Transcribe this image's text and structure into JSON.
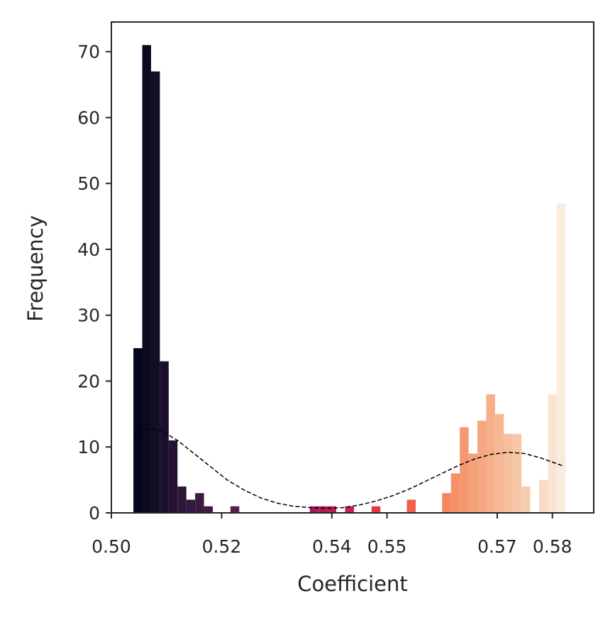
{
  "chart_data": {
    "type": "bar",
    "title": "",
    "xlabel": "Coefficient",
    "ylabel": "Frequency",
    "xlim": [
      0.5,
      0.5875
    ],
    "ylim": [
      0,
      74.5
    ],
    "x_ticks": [
      0.5,
      0.52,
      0.54,
      0.55,
      0.57,
      0.58
    ],
    "x_tick_labels": [
      "0.50",
      "0.52",
      "0.54",
      "0.55",
      "0.57",
      "0.58"
    ],
    "y_ticks": [
      0,
      10,
      20,
      30,
      40,
      50,
      60,
      70
    ],
    "y_tick_labels": [
      "0",
      "10",
      "20",
      "30",
      "40",
      "50",
      "60",
      "70"
    ],
    "bin_width": 0.0016,
    "bin_start": 0.504,
    "values": [
      25,
      71,
      67,
      23,
      11,
      4,
      2,
      3,
      1,
      0,
      0,
      1,
      0,
      0,
      0,
      0,
      0,
      0,
      0,
      0,
      1,
      1,
      1,
      0,
      1,
      0,
      0,
      1,
      0,
      0,
      0,
      2,
      0,
      0,
      0,
      3,
      6,
      13,
      9,
      14,
      18,
      15,
      12,
      12,
      4,
      0,
      5,
      18,
      47
    ],
    "colormap": [
      "#03051a",
      "#2a1736",
      "#4c1d4b",
      "#701f57",
      "#a11a5b",
      "#cb1b4f",
      "#ed4a3f",
      "#f47a54",
      "#f5a57d",
      "#f6c7a8",
      "#faebdd"
    ],
    "density_curve": {
      "style": "dashed",
      "color": "#000000",
      "x": [
        0.504,
        0.507,
        0.509,
        0.512,
        0.515,
        0.518,
        0.521,
        0.524,
        0.527,
        0.53,
        0.533,
        0.536,
        0.539,
        0.542,
        0.545,
        0.548,
        0.551,
        0.554,
        0.557,
        0.56,
        0.563,
        0.566,
        0.569,
        0.572,
        0.575,
        0.578,
        0.582
      ],
      "y": [
        12,
        12.8,
        12.5,
        11,
        9,
        7,
        5,
        3.5,
        2.3,
        1.5,
        1.0,
        0.8,
        0.7,
        0.8,
        1.2,
        1.8,
        2.6,
        3.6,
        4.8,
        6.0,
        7.2,
        8.2,
        8.9,
        9.2,
        9.0,
        8.3,
        7.1
      ]
    },
    "grid": false,
    "legend": "none"
  }
}
